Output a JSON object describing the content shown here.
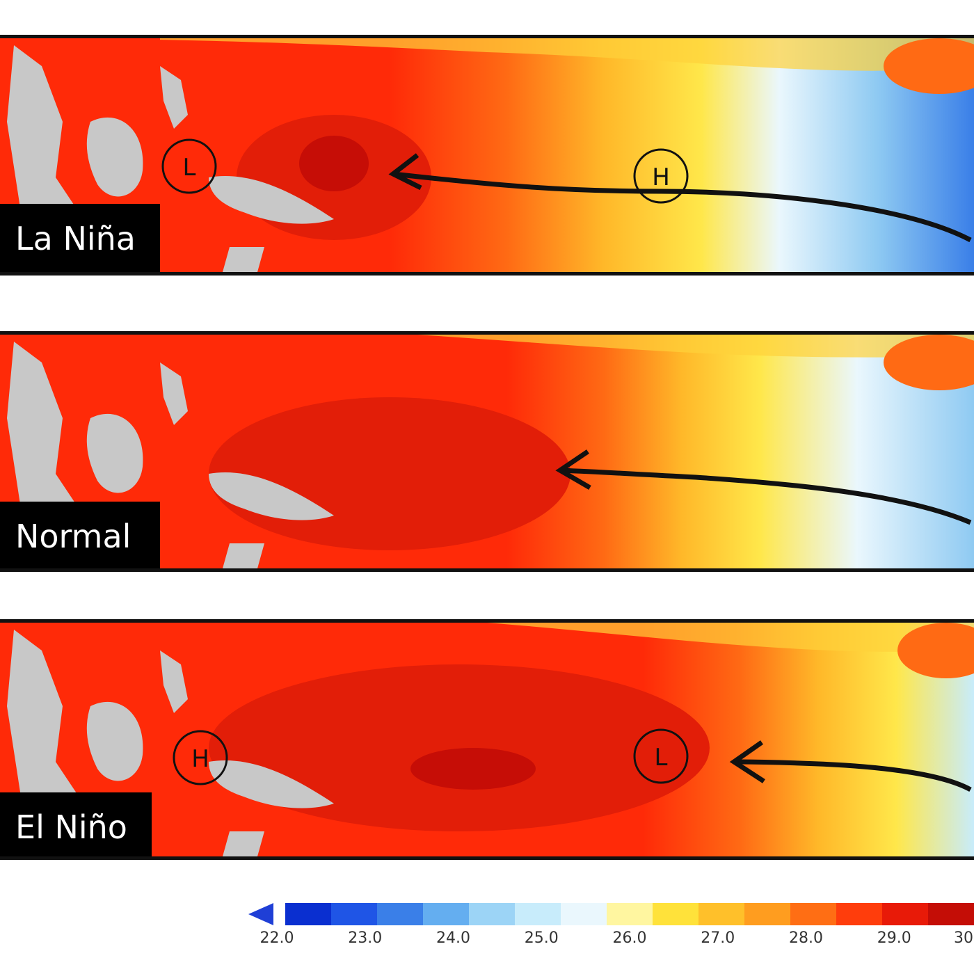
{
  "panels": [
    {
      "label": "La Niña",
      "pressure_west": "L",
      "pressure_east": "H"
    },
    {
      "label": "Normal"
    },
    {
      "label": "El Niño",
      "pressure_west": "H",
      "pressure_east": "L"
    }
  ],
  "colorbar": {
    "ticks": [
      "22.0",
      "23.0",
      "24.0",
      "25.0",
      "26.0",
      "27.0",
      "28.0",
      "29.0",
      "30"
    ],
    "colors": [
      "#0a2fd0",
      "#1f55e6",
      "#3a7fe8",
      "#64aef0",
      "#9cd4f6",
      "#c8ecfb",
      "#eaf7fd",
      "#fff6a0",
      "#ffe23a",
      "#ffc02a",
      "#ff9d1f",
      "#ff6e14",
      "#ff3d0c",
      "#e81a08",
      "#c40d06"
    ]
  },
  "colors": {
    "land": "#c8c8c8",
    "frame": "#111111"
  }
}
